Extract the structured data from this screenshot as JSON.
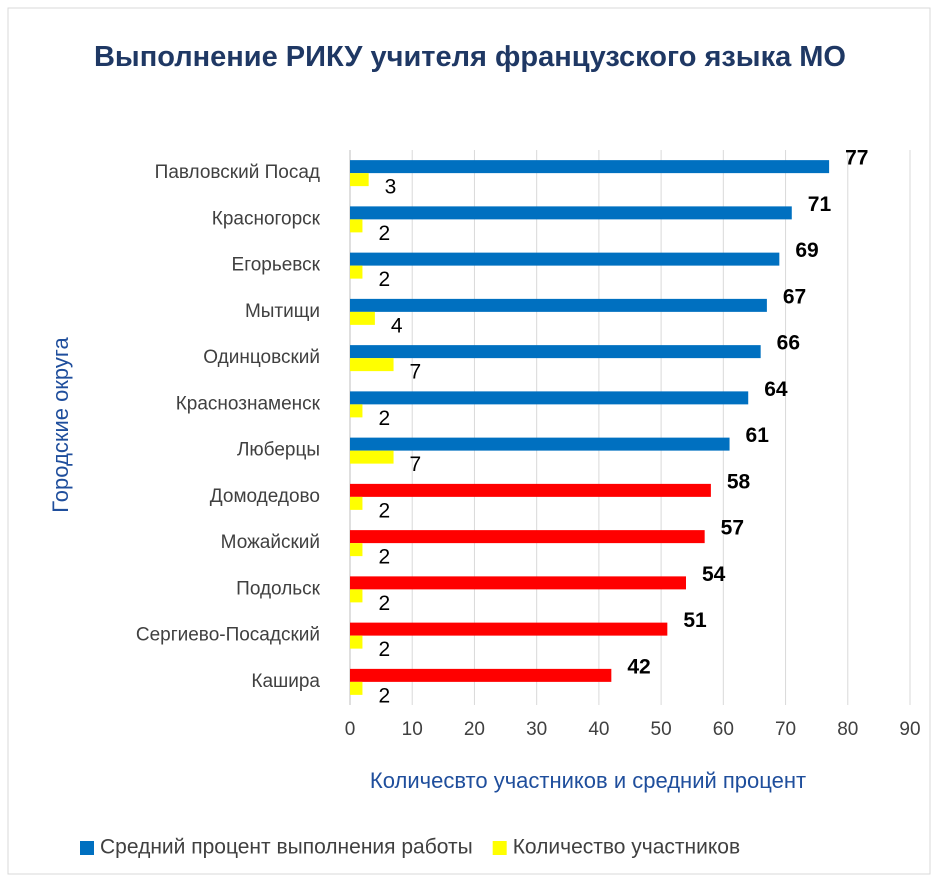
{
  "chart_data": {
    "type": "bar",
    "orientation": "horizontal",
    "title": "Выполнение РИКУ учителя французского языка МО",
    "y_label": "Городские округа",
    "x_label": "Количесвто участников и средний процент",
    "categories": [
      "Павловский Посад",
      "Красногорск",
      "Егорьевск",
      "Мытищи",
      "Одинцовский",
      "Краснознаменск",
      "Люберцы",
      "Домодедово",
      "Можайский",
      "Подольск",
      "Сергиево-Посадский",
      "Кашира"
    ],
    "series": [
      {
        "name": "Средний процент выполнения работы",
        "color": "#0070c0",
        "colors": [
          "#0070c0",
          "#0070c0",
          "#0070c0",
          "#0070c0",
          "#0070c0",
          "#0070c0",
          "#0070c0",
          "#ff0000",
          "#ff0000",
          "#ff0000",
          "#ff0000",
          "#ff0000"
        ],
        "values": [
          77,
          71,
          69,
          67,
          66,
          64,
          61,
          58,
          57,
          54,
          51,
          42
        ]
      },
      {
        "name": "Количество участников",
        "color": "#ffff00",
        "values": [
          3,
          2,
          2,
          4,
          7,
          2,
          7,
          2,
          2,
          2,
          2,
          2
        ]
      }
    ],
    "xlim": [
      0,
      90
    ],
    "xticks": [
      0,
      10,
      20,
      30,
      40,
      50,
      60,
      70,
      80,
      90
    ],
    "grid": true,
    "legend": "bottom"
  }
}
